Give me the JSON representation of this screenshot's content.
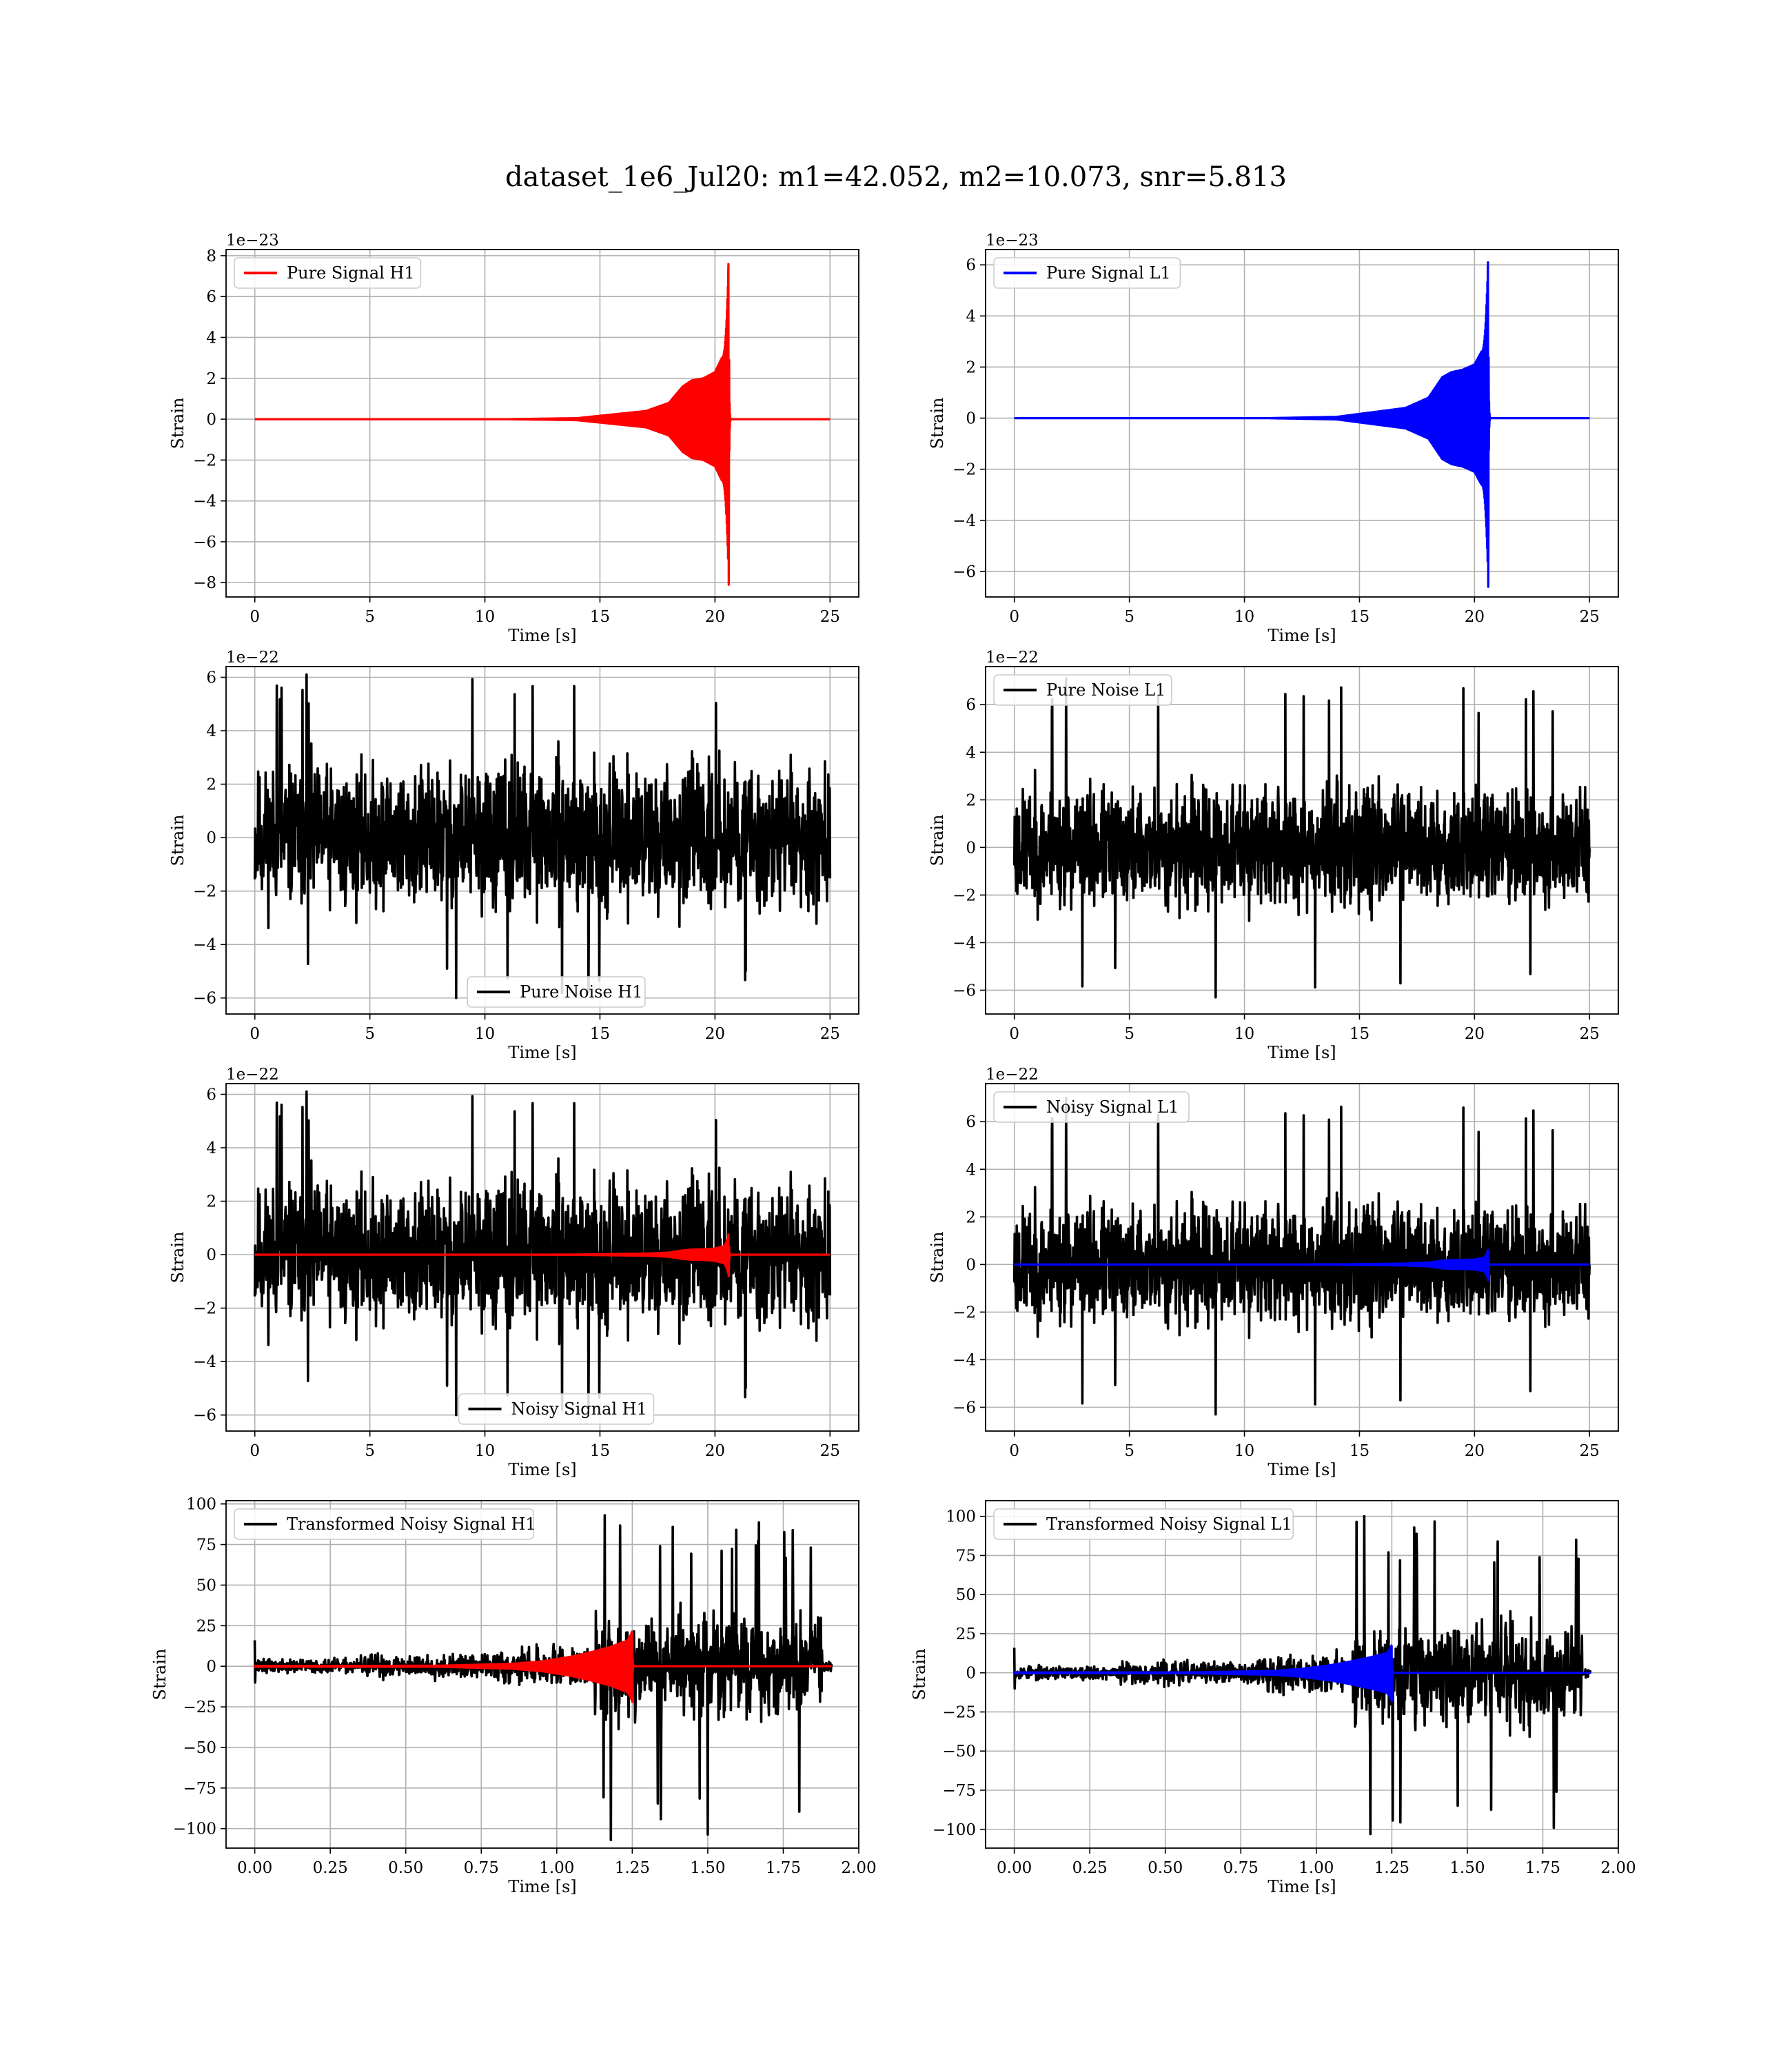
{
  "figure": {
    "title": "dataset_1e6_Jul20: m1=42.052, m2=10.073, snr=5.813"
  },
  "chart_data": [
    {
      "type": "line",
      "panel": "pure-signal-h1",
      "xlabel": "Time [s]",
      "ylabel": "Strain",
      "offset_text": "1e−23",
      "xlim": [
        -1.25,
        26.25
      ],
      "ylim": [
        -8.7,
        8.3
      ],
      "xticks": [
        0,
        5,
        10,
        15,
        20,
        25
      ],
      "xtick_labels": [
        "0",
        "5",
        "10",
        "15",
        "20",
        "25"
      ],
      "yticks": [
        -8,
        -6,
        -4,
        -2,
        0,
        2,
        4,
        6,
        8
      ],
      "ytick_labels": [
        "−8",
        "−6",
        "−4",
        "−2",
        "0",
        "2",
        "4",
        "6",
        "8"
      ],
      "grid": true,
      "legend_position": "top-left",
      "series": [
        {
          "name": "Pure Signal H1",
          "role": "chirp",
          "color": "#ff0000",
          "duration": 25,
          "merger_time": 20.6,
          "peak_positive": 7.6,
          "peak_negative": -8.1,
          "envelope": [
            [
              14.0,
              0.05
            ],
            [
              17.0,
              0.4
            ],
            [
              18.0,
              0.8
            ],
            [
              18.6,
              1.6
            ],
            [
              19.0,
              1.9
            ],
            [
              19.5,
              2.0
            ],
            [
              20.0,
              2.3
            ],
            [
              20.3,
              3.0
            ]
          ]
        }
      ]
    },
    {
      "type": "line",
      "panel": "pure-signal-l1",
      "xlabel": "Time [s]",
      "ylabel": "Strain",
      "offset_text": "1e−23",
      "xlim": [
        -1.25,
        26.25
      ],
      "ylim": [
        -7.0,
        6.6
      ],
      "xticks": [
        0,
        5,
        10,
        15,
        20,
        25
      ],
      "xtick_labels": [
        "0",
        "5",
        "10",
        "15",
        "20",
        "25"
      ],
      "yticks": [
        -6,
        -4,
        -2,
        0,
        2,
        4,
        6
      ],
      "ytick_labels": [
        "−6",
        "−4",
        "−2",
        "0",
        "2",
        "4",
        "6"
      ],
      "grid": true,
      "legend_position": "top-left",
      "series": [
        {
          "name": "Pure Signal L1",
          "role": "chirp",
          "color": "#0000ff",
          "duration": 25,
          "merger_time": 20.6,
          "peak_positive": 6.1,
          "peak_negative": -6.6,
          "envelope": [
            [
              14.0,
              0.05
            ],
            [
              17.0,
              0.4
            ],
            [
              18.0,
              0.8
            ],
            [
              18.6,
              1.6
            ],
            [
              19.0,
              1.8
            ],
            [
              19.5,
              1.9
            ],
            [
              20.0,
              2.1
            ],
            [
              20.3,
              2.6
            ]
          ]
        }
      ]
    },
    {
      "type": "line",
      "panel": "pure-noise-h1",
      "xlabel": "Time [s]",
      "ylabel": "Strain",
      "offset_text": "1e−22",
      "xlim": [
        -1.25,
        26.25
      ],
      "ylim": [
        -6.6,
        6.4
      ],
      "xticks": [
        0,
        5,
        10,
        15,
        20,
        25
      ],
      "xtick_labels": [
        "0",
        "5",
        "10",
        "15",
        "20",
        "25"
      ],
      "yticks": [
        -6,
        -4,
        -2,
        0,
        2,
        4,
        6
      ],
      "ytick_labels": [
        "−6",
        "−4",
        "−2",
        "0",
        "2",
        "4",
        "6"
      ],
      "grid": true,
      "legend_position": "bottom-center",
      "series": [
        {
          "name": "Pure Noise H1",
          "role": "noise",
          "color": "#000000",
          "duration": 25,
          "body_amplitude": 3.7,
          "peak_positive": 6.1,
          "peak_negative": -6.0,
          "seed": 11
        }
      ]
    },
    {
      "type": "line",
      "panel": "pure-noise-l1",
      "xlabel": "Time [s]",
      "ylabel": "Strain",
      "offset_text": "1e−22",
      "xlim": [
        -1.25,
        26.25
      ],
      "ylim": [
        -7.0,
        7.6
      ],
      "xticks": [
        0,
        5,
        10,
        15,
        20,
        25
      ],
      "xtick_labels": [
        "0",
        "5",
        "10",
        "15",
        "20",
        "25"
      ],
      "yticks": [
        -6,
        -4,
        -2,
        0,
        2,
        4,
        6
      ],
      "ytick_labels": [
        "−6",
        "−4",
        "−2",
        "0",
        "2",
        "4",
        "6"
      ],
      "grid": true,
      "legend_position": "top-left",
      "series": [
        {
          "name": "Pure Noise L1",
          "role": "noise",
          "color": "#000000",
          "duration": 25,
          "body_amplitude": 3.5,
          "peak_positive": 7.1,
          "peak_negative": -6.3,
          "seed": 23
        }
      ]
    },
    {
      "type": "line",
      "panel": "noisy-signal-h1",
      "xlabel": "Time [s]",
      "ylabel": "Strain",
      "offset_text": "1e−22",
      "xlim": [
        -1.25,
        26.25
      ],
      "ylim": [
        -6.6,
        6.4
      ],
      "xticks": [
        0,
        5,
        10,
        15,
        20,
        25
      ],
      "xtick_labels": [
        "0",
        "5",
        "10",
        "15",
        "20",
        "25"
      ],
      "yticks": [
        -6,
        -4,
        -2,
        0,
        2,
        4,
        6
      ],
      "ytick_labels": [
        "−6",
        "−4",
        "−2",
        "0",
        "2",
        "4",
        "6"
      ],
      "grid": true,
      "legend_position": "bottom-center",
      "series": [
        {
          "name": "Noisy Signal H1",
          "role": "noise",
          "color": "#000000",
          "duration": 25,
          "body_amplitude": 3.7,
          "peak_positive": 6.1,
          "peak_negative": -6.0,
          "seed": 11
        },
        {
          "role": "chirp",
          "color": "#ff0000",
          "duration": 25,
          "merger_time": 20.6,
          "peak_positive": 0.76,
          "peak_negative": -0.81,
          "envelope": [
            [
              14.0,
              0.005
            ],
            [
              17.0,
              0.04
            ],
            [
              18.0,
              0.08
            ],
            [
              18.6,
              0.16
            ],
            [
              19.0,
              0.19
            ],
            [
              19.5,
              0.2
            ],
            [
              20.0,
              0.23
            ],
            [
              20.3,
              0.3
            ]
          ]
        }
      ]
    },
    {
      "type": "line",
      "panel": "noisy-signal-l1",
      "xlabel": "Time [s]",
      "ylabel": "Strain",
      "offset_text": "1e−22",
      "xlim": [
        -1.25,
        26.25
      ],
      "ylim": [
        -7.0,
        7.6
      ],
      "xticks": [
        0,
        5,
        10,
        15,
        20,
        25
      ],
      "xtick_labels": [
        "0",
        "5",
        "10",
        "15",
        "20",
        "25"
      ],
      "yticks": [
        -6,
        -4,
        -2,
        0,
        2,
        4,
        6
      ],
      "ytick_labels": [
        "−6",
        "−4",
        "−2",
        "0",
        "2",
        "4",
        "6"
      ],
      "grid": true,
      "legend_position": "top-left",
      "series": [
        {
          "name": "Noisy Signal L1",
          "role": "noise",
          "color": "#000000",
          "duration": 25,
          "body_amplitude": 3.5,
          "peak_positive": 7.0,
          "peak_negative": -6.3,
          "seed": 23
        },
        {
          "role": "chirp",
          "color": "#0000ff",
          "duration": 25,
          "merger_time": 20.6,
          "peak_positive": 0.61,
          "peak_negative": -0.66,
          "envelope": [
            [
              14.0,
              0.005
            ],
            [
              17.0,
              0.04
            ],
            [
              18.0,
              0.08
            ],
            [
              18.6,
              0.16
            ],
            [
              19.0,
              0.18
            ],
            [
              19.5,
              0.19
            ],
            [
              20.0,
              0.21
            ],
            [
              20.3,
              0.26
            ]
          ]
        }
      ]
    },
    {
      "type": "line",
      "panel": "transformed-noisy-signal-h1",
      "xlabel": "Time [s]",
      "ylabel": "Strain",
      "offset_text": "",
      "xlim": [
        -0.095,
        2.0
      ],
      "ylim": [
        -112,
        102
      ],
      "xticks": [
        0.0,
        0.25,
        0.5,
        0.75,
        1.0,
        1.25,
        1.5,
        1.75,
        2.0
      ],
      "xtick_labels": [
        "0.00",
        "0.25",
        "0.50",
        "0.75",
        "1.00",
        "1.25",
        "1.50",
        "1.75",
        "2.00"
      ],
      "yticks": [
        -100,
        -75,
        -50,
        -25,
        0,
        25,
        50,
        75,
        100
      ],
      "ytick_labels": [
        "−100",
        "−75",
        "−50",
        "−25",
        "0",
        "25",
        "50",
        "75",
        "100"
      ],
      "grid": true,
      "legend_position": "top-left",
      "series": [
        {
          "name": "Transformed Noisy Signal H1",
          "role": "burst-noise",
          "color": "#000000",
          "duration": 1.91,
          "segments": [
            [
              0.0,
              0.35,
              6
            ],
            [
              0.35,
              0.8,
              10
            ],
            [
              0.8,
              1.12,
              16
            ],
            [
              1.12,
              1.88,
              45
            ]
          ],
          "peak_positive": 93,
          "peak_negative": -107,
          "seed": 37
        },
        {
          "role": "chirp",
          "color": "#ff0000",
          "duration": 1.91,
          "merger_time": 1.25,
          "peak_positive": 21,
          "peak_negative": -22,
          "envelope": [
            [
              0.6,
              0.3
            ],
            [
              0.85,
              1.5
            ],
            [
              0.95,
              3
            ],
            [
              1.05,
              6
            ],
            [
              1.12,
              9
            ],
            [
              1.18,
              12
            ],
            [
              1.22,
              15
            ]
          ]
        }
      ]
    },
    {
      "type": "line",
      "panel": "transformed-noisy-signal-l1",
      "xlabel": "Time [s]",
      "ylabel": "Strain",
      "offset_text": "",
      "xlim": [
        -0.095,
        2.0
      ],
      "ylim": [
        -112,
        110
      ],
      "xticks": [
        0.0,
        0.25,
        0.5,
        0.75,
        1.0,
        1.25,
        1.5,
        1.75,
        2.0
      ],
      "xtick_labels": [
        "0.00",
        "0.25",
        "0.50",
        "0.75",
        "1.00",
        "1.25",
        "1.50",
        "1.75",
        "2.00"
      ],
      "yticks": [
        -100,
        -75,
        -50,
        -25,
        0,
        25,
        50,
        75,
        100
      ],
      "ytick_labels": [
        "−100",
        "−75",
        "−50",
        "−25",
        "0",
        "25",
        "50",
        "75",
        "100"
      ],
      "grid": true,
      "legend_position": "top-left",
      "series": [
        {
          "name": "Transformed Noisy Signal L1",
          "role": "burst-noise",
          "color": "#000000",
          "duration": 1.91,
          "segments": [
            [
              0.0,
              0.35,
              6
            ],
            [
              0.35,
              0.8,
              10
            ],
            [
              0.8,
              1.12,
              16
            ],
            [
              1.12,
              1.88,
              45
            ]
          ],
          "peak_positive": 100,
          "peak_negative": -103,
          "seed": 53
        },
        {
          "role": "chirp",
          "color": "#0000ff",
          "duration": 1.91,
          "merger_time": 1.25,
          "peak_positive": 17,
          "peak_negative": -18,
          "envelope": [
            [
              0.6,
              0.3
            ],
            [
              0.85,
              1.2
            ],
            [
              0.95,
              2.5
            ],
            [
              1.05,
              5
            ],
            [
              1.12,
              7.5
            ],
            [
              1.18,
              10
            ],
            [
              1.22,
              12
            ]
          ]
        }
      ]
    }
  ]
}
